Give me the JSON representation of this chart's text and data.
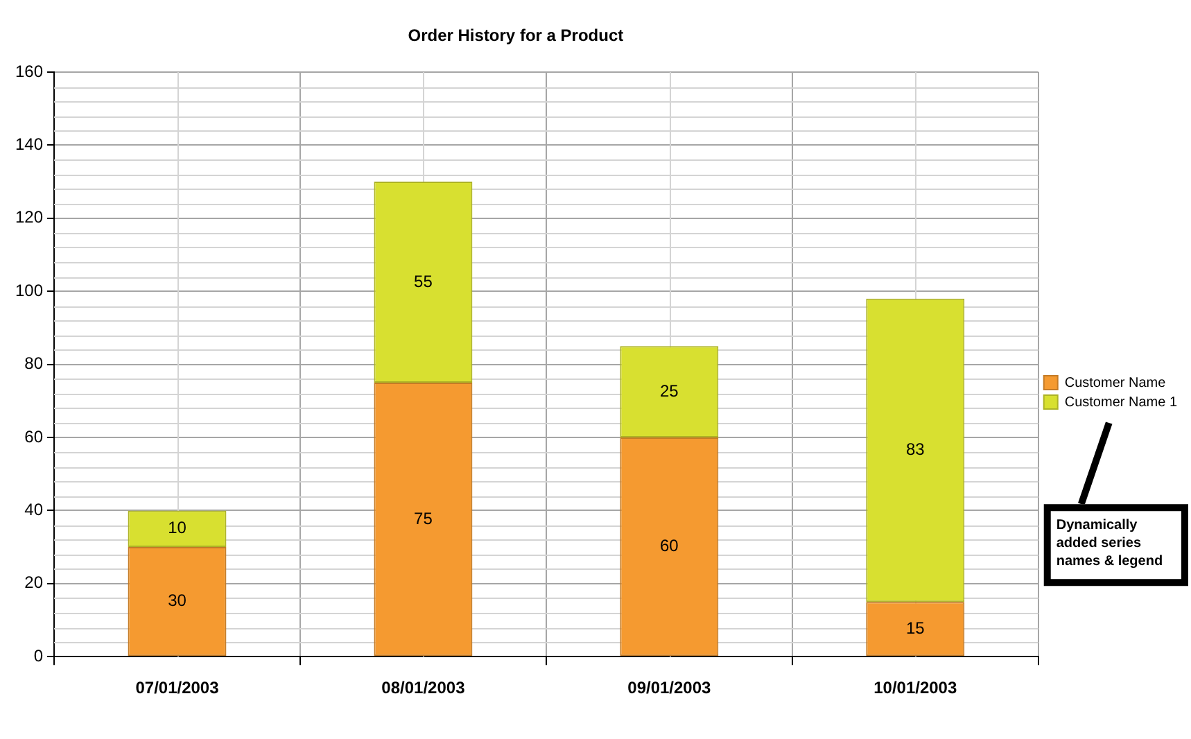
{
  "chart_data": {
    "type": "bar",
    "title": "Order History for a Product",
    "categories": [
      "07/01/2003",
      "08/01/2003",
      "09/01/2003",
      "10/01/2003"
    ],
    "series": [
      {
        "name": "Customer Name",
        "color": "#f59a30",
        "values": [
          30,
          75,
          60,
          15
        ]
      },
      {
        "name": "Customer Name 1",
        "color": "#d8e030",
        "values": [
          10,
          55,
          25,
          83
        ]
      }
    ],
    "stacked": true,
    "ylim": [
      0,
      160
    ],
    "yticks": [
      0,
      20,
      40,
      60,
      80,
      100,
      120,
      140,
      160
    ],
    "grid": true,
    "legend": "right",
    "data_labels": true,
    "annotations": [
      "Dynamically added series names & legend"
    ]
  }
}
